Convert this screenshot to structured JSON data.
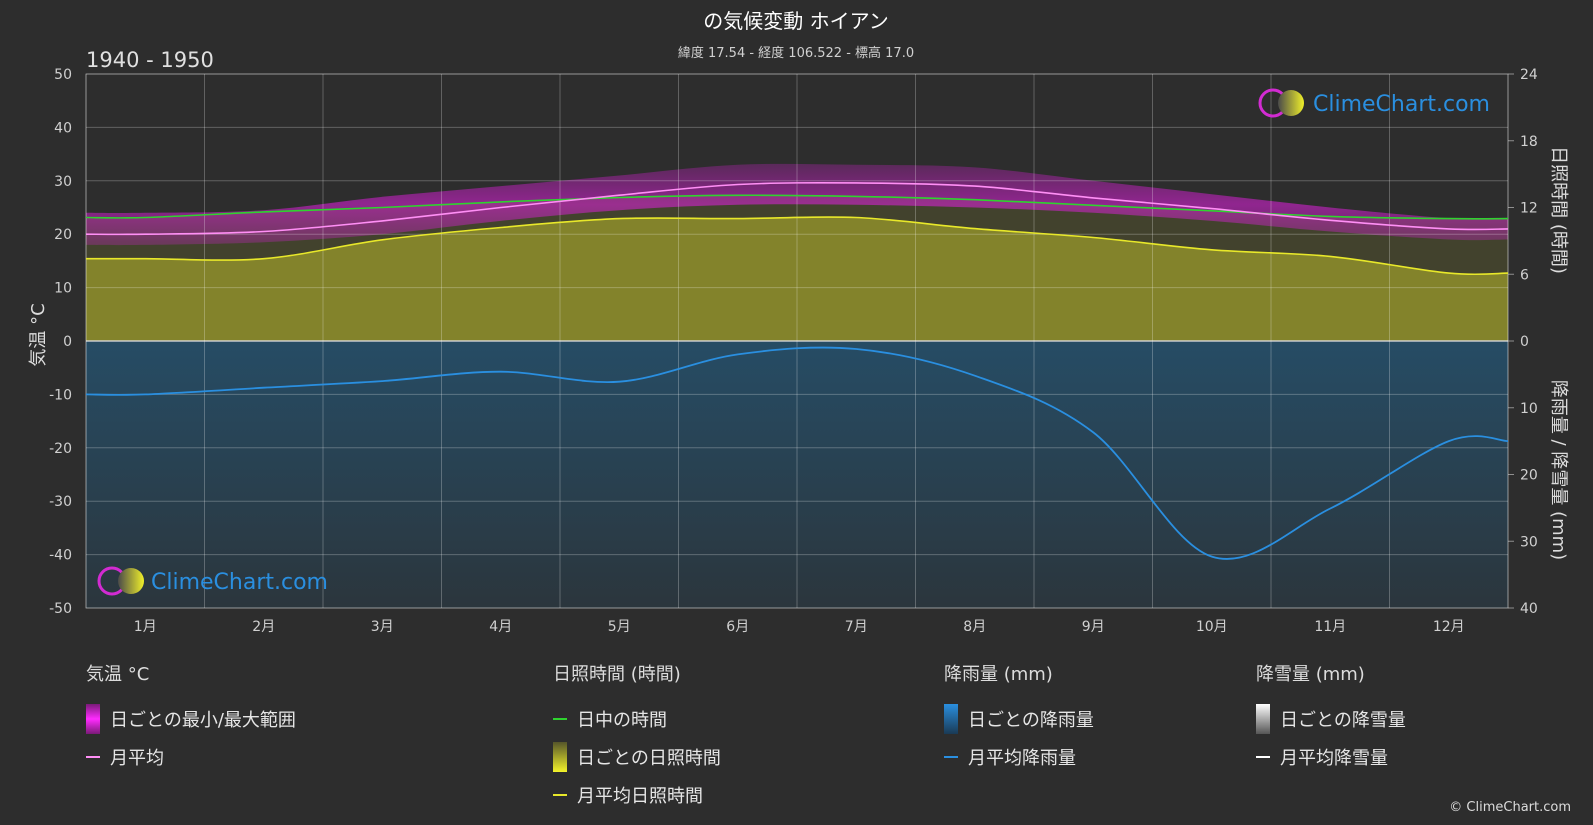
{
  "title": "の気候変動 ホイアン",
  "subtitle": "緯度 17.54 - 経度 106.522 - 標高 17.0",
  "period": "1940 - 1950",
  "watermark": "ClimeChart.com",
  "copyright": "© ClimeChart.com",
  "colors": {
    "background": "#2d2d2d",
    "temp_range": "#e21fe0",
    "temp_avg": "#ff8ff5",
    "daylight": "#2fd32f",
    "sunshine_fill": "#8e8e2c",
    "sunshine_avg": "#e8e82a",
    "rain_fill": "#1f6c9e",
    "rain_avg": "#2a8fe0",
    "snow_avg": "#ffffff",
    "brand": "#2a8fe0"
  },
  "chart_data": {
    "type": "line",
    "categories": [
      "1月",
      "2月",
      "3月",
      "4月",
      "5月",
      "6月",
      "7月",
      "8月",
      "9月",
      "10月",
      "11月",
      "12月"
    ],
    "left_axis": {
      "label": "気温 °C",
      "ylim": [
        -50,
        50
      ],
      "ticks": [
        "50",
        "40",
        "30",
        "20",
        "10",
        "0",
        "-10",
        "-20",
        "-30",
        "-40",
        "-50"
      ]
    },
    "right_axis_top": {
      "label": "日照時間 (時間)",
      "ylim": [
        0,
        24
      ],
      "ticks": [
        "24",
        "18",
        "12",
        "6",
        "0"
      ]
    },
    "right_axis_bottom": {
      "label": "降雨量 / 降雪量 (mm)",
      "ylim": [
        0,
        40
      ],
      "ticks": [
        "0",
        "10",
        "20",
        "30",
        "40"
      ]
    },
    "series": [
      {
        "name": "月平均",
        "axis": "temp",
        "values": [
          20.0,
          20.5,
          22.5,
          25.0,
          27.3,
          29.3,
          29.6,
          29.0,
          26.8,
          24.8,
          22.6,
          21.0
        ]
      },
      {
        "name": "日中の時間",
        "axis": "sun",
        "values": [
          11.1,
          11.6,
          12.0,
          12.5,
          12.9,
          13.1,
          13.0,
          12.7,
          12.2,
          11.7,
          11.2,
          11.0
        ]
      },
      {
        "name": "月平均日照時間",
        "axis": "sun",
        "values": [
          7.4,
          7.4,
          9.1,
          10.2,
          11.0,
          11.0,
          11.1,
          10.1,
          9.3,
          8.2,
          7.6,
          6.1
        ]
      },
      {
        "name": "月平均降雨量",
        "axis": "rain",
        "values": [
          8.0,
          7.0,
          6.0,
          4.6,
          6.1,
          2.0,
          1.2,
          5.2,
          13.7,
          32.3,
          25.1,
          15.0
        ]
      },
      {
        "name": "月平均降雪量",
        "axis": "rain",
        "values": [
          0,
          0,
          0,
          0,
          0,
          0,
          0,
          0,
          0,
          0,
          0,
          0
        ]
      }
    ],
    "temp_range": {
      "name": "日ごとの最小/最大範囲",
      "min": [
        18.0,
        18.5,
        20.0,
        22.5,
        24.5,
        25.5,
        25.5,
        25.0,
        24.0,
        22.5,
        20.5,
        19.0
      ],
      "max": [
        24.0,
        24.5,
        27.0,
        29.0,
        31.0,
        33.0,
        33.0,
        32.5,
        30.0,
        27.5,
        25.0,
        23.0
      ]
    }
  },
  "legend": {
    "temp": {
      "title": "気温 °C",
      "range": "日ごとの最小/最大範囲",
      "avg": "月平均"
    },
    "sun": {
      "title": "日照時間 (時間)",
      "daylight": "日中の時間",
      "daily": "日ごとの日照時間",
      "avg": "月平均日照時間"
    },
    "rain": {
      "title": "降雨量 (mm)",
      "daily": "日ごとの降雨量",
      "avg": "月平均降雨量"
    },
    "snow": {
      "title": "降雪量 (mm)",
      "daily": "日ごとの降雪量",
      "avg": "月平均降雪量"
    }
  }
}
